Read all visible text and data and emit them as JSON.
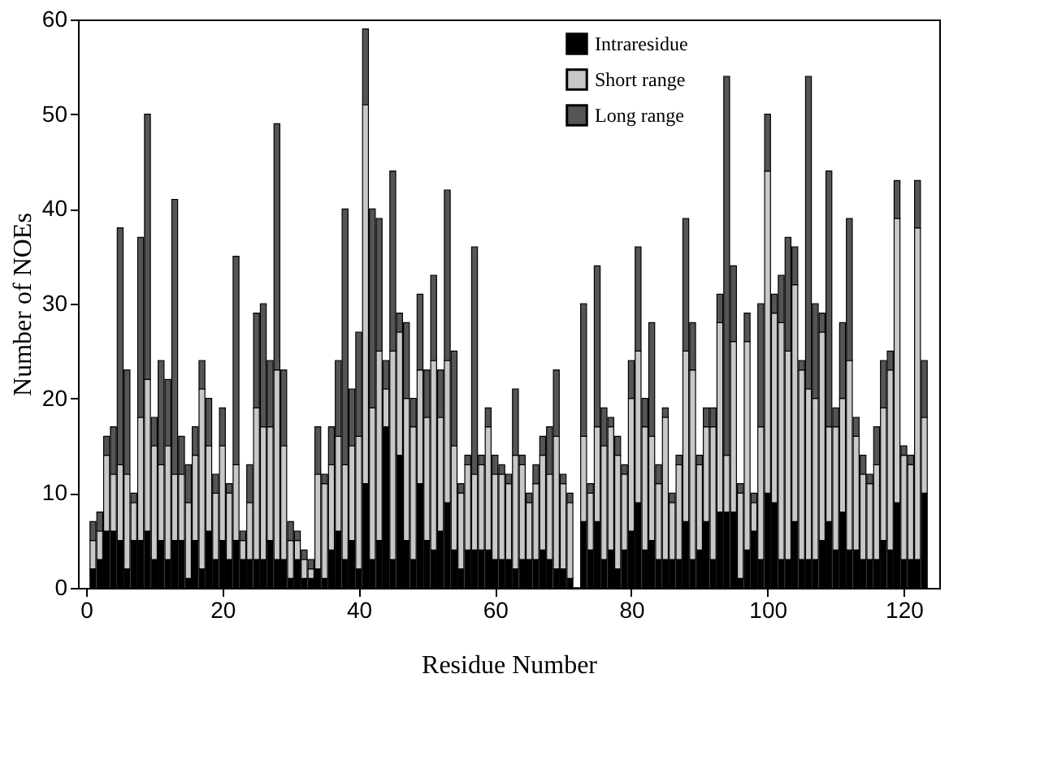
{
  "chart_data": {
    "type": "bar",
    "stacked": true,
    "xlabel": "Residue Number",
    "ylabel": "Number of NOEs",
    "x": [
      1,
      2,
      3,
      4,
      5,
      6,
      7,
      8,
      9,
      10,
      11,
      12,
      13,
      14,
      15,
      16,
      17,
      18,
      19,
      20,
      21,
      22,
      23,
      24,
      25,
      26,
      27,
      28,
      29,
      30,
      31,
      32,
      33,
      34,
      35,
      36,
      37,
      38,
      39,
      40,
      41,
      42,
      43,
      44,
      45,
      46,
      47,
      48,
      49,
      50,
      51,
      52,
      53,
      54,
      55,
      56,
      57,
      58,
      59,
      60,
      61,
      62,
      63,
      64,
      65,
      66,
      67,
      68,
      69,
      70,
      71,
      72,
      73,
      74,
      75,
      76,
      77,
      78,
      79,
      80,
      81,
      82,
      83,
      84,
      85,
      86,
      87,
      88,
      89,
      90,
      91,
      92,
      93,
      94,
      95,
      96,
      97,
      98,
      99,
      100,
      101,
      102,
      103,
      104,
      105,
      106,
      107,
      108,
      109,
      110,
      111,
      112,
      113,
      114,
      115,
      116,
      117,
      118,
      119,
      120,
      121,
      122,
      123
    ],
    "series": [
      {
        "name": "Intraresidue",
        "color": "#000000",
        "values": [
          2,
          3,
          6,
          6,
          5,
          2,
          5,
          5,
          6,
          3,
          5,
          3,
          5,
          5,
          1,
          5,
          2,
          6,
          3,
          5,
          3,
          5,
          3,
          3,
          3,
          3,
          5,
          3,
          3,
          1,
          3,
          1,
          1,
          2,
          1,
          4,
          6,
          3,
          5,
          2,
          11,
          3,
          5,
          17,
          3,
          14,
          5,
          3,
          11,
          5,
          4,
          6,
          9,
          4,
          2,
          4,
          4,
          4,
          4,
          3,
          3,
          3,
          2,
          3,
          3,
          3,
          4,
          3,
          2,
          2,
          1,
          0,
          7,
          4,
          7,
          3,
          4,
          2,
          4,
          6,
          9,
          4,
          5,
          3,
          3,
          3,
          3,
          7,
          3,
          4,
          7,
          3,
          8,
          8,
          8,
          1,
          4,
          6,
          3,
          10,
          9,
          3,
          3,
          7,
          3,
          3,
          3,
          5,
          7,
          4,
          8,
          4,
          4,
          3,
          3,
          3,
          5,
          4,
          9,
          3,
          3,
          3,
          10
        ]
      },
      {
        "name": "Short range",
        "color": "#c8c8c8",
        "values": [
          3,
          3,
          8,
          6,
          8,
          10,
          4,
          13,
          16,
          12,
          8,
          12,
          7,
          7,
          8,
          9,
          19,
          9,
          7,
          10,
          7,
          8,
          2,
          6,
          16,
          14,
          12,
          20,
          12,
          4,
          2,
          2,
          1,
          10,
          10,
          9,
          10,
          10,
          10,
          14,
          40,
          16,
          20,
          4,
          22,
          13,
          15,
          14,
          12,
          13,
          20,
          12,
          15,
          11,
          8,
          9,
          8,
          9,
          13,
          9,
          9,
          8,
          12,
          10,
          6,
          8,
          10,
          9,
          14,
          9,
          8,
          0,
          9,
          6,
          10,
          12,
          13,
          12,
          8,
          14,
          16,
          13,
          11,
          8,
          15,
          6,
          10,
          18,
          20,
          9,
          10,
          14,
          20,
          6,
          18,
          9,
          22,
          3,
          14,
          34,
          20,
          25,
          22,
          25,
          20,
          18,
          17,
          22,
          10,
          13,
          12,
          20,
          12,
          9,
          8,
          10,
          14,
          19,
          30,
          11,
          10,
          35,
          8
        ]
      },
      {
        "name": "Long range",
        "color": "#555555",
        "values": [
          2,
          2,
          2,
          5,
          25,
          11,
          1,
          19,
          28,
          3,
          11,
          7,
          29,
          4,
          4,
          3,
          3,
          5,
          2,
          4,
          1,
          22,
          1,
          4,
          10,
          13,
          7,
          26,
          8,
          2,
          1,
          1,
          1,
          5,
          1,
          4,
          8,
          27,
          6,
          11,
          8,
          21,
          14,
          3,
          19,
          2,
          8,
          3,
          8,
          5,
          9,
          5,
          18,
          10,
          1,
          1,
          24,
          1,
          2,
          2,
          1,
          1,
          7,
          1,
          1,
          2,
          2,
          5,
          7,
          1,
          1,
          0,
          14,
          1,
          17,
          4,
          1,
          2,
          1,
          4,
          11,
          3,
          12,
          2,
          1,
          1,
          1,
          14,
          5,
          1,
          2,
          2,
          3,
          40,
          8,
          1,
          3,
          1,
          13,
          6,
          2,
          5,
          12,
          4,
          1,
          33,
          10,
          2,
          27,
          2,
          8,
          15,
          2,
          2,
          1,
          4,
          5,
          2,
          4,
          1,
          1,
          5,
          6
        ]
      }
    ],
    "xlim": [
      0,
      124
    ],
    "xticks": [
      0,
      20,
      40,
      60,
      80,
      100,
      120
    ],
    "ylim": [
      0,
      60
    ],
    "yticks": [
      0,
      10,
      20,
      30,
      40,
      50,
      60
    ],
    "grid": false,
    "legend": "top right"
  }
}
